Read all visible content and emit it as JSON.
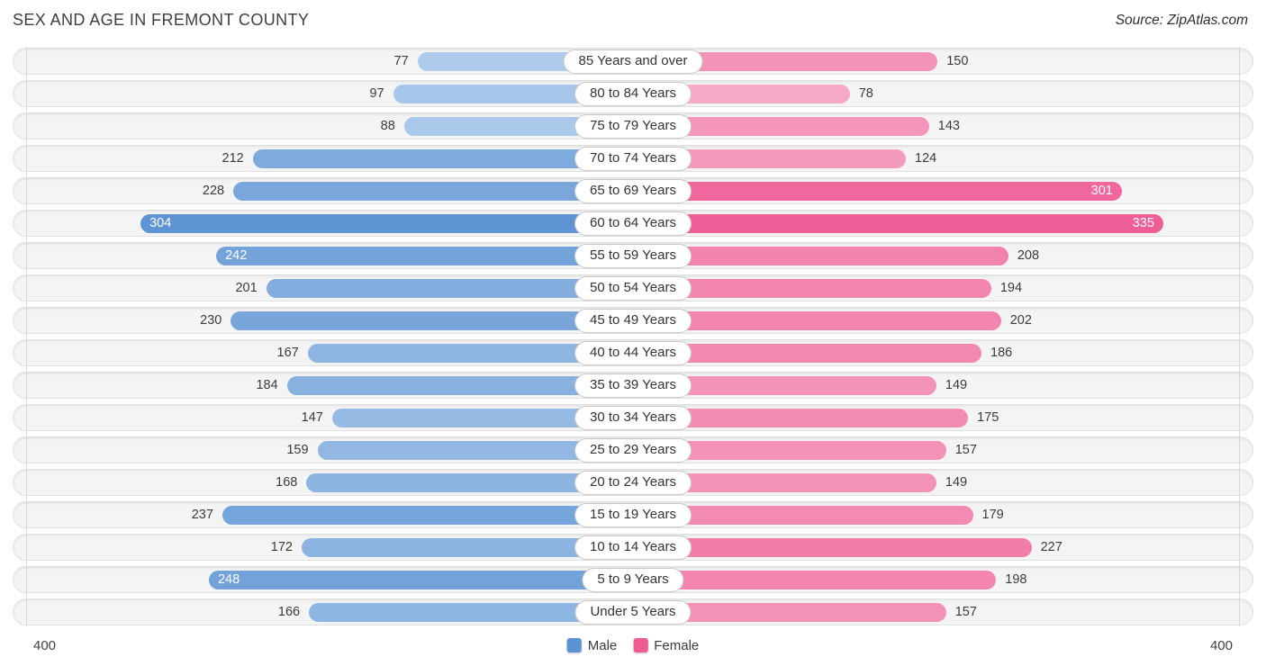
{
  "header": {
    "title": "SEX AND AGE IN FREMONT COUNTY",
    "source": "Source: ZipAtlas.com"
  },
  "chart_data": {
    "type": "bar",
    "subtype": "population-pyramid",
    "title": "SEX AND AGE IN FREMONT COUNTY",
    "categories": [
      "85 Years and over",
      "80 to 84 Years",
      "75 to 79 Years",
      "70 to 74 Years",
      "65 to 69 Years",
      "60 to 64 Years",
      "55 to 59 Years",
      "50 to 54 Years",
      "45 to 49 Years",
      "40 to 44 Years",
      "35 to 39 Years",
      "30 to 34 Years",
      "25 to 29 Years",
      "20 to 24 Years",
      "15 to 19 Years",
      "10 to 14 Years",
      "5 to 9 Years",
      "Under 5 Years"
    ],
    "series": [
      {
        "name": "Male",
        "values": [
          77,
          97,
          88,
          212,
          228,
          304,
          242,
          201,
          230,
          167,
          184,
          147,
          159,
          168,
          237,
          172,
          248,
          166
        ]
      },
      {
        "name": "Female",
        "values": [
          150,
          78,
          143,
          124,
          301,
          335,
          208,
          194,
          202,
          186,
          149,
          175,
          157,
          149,
          179,
          227,
          198,
          157
        ]
      }
    ],
    "axis": {
      "max": 400,
      "left_tick_label": "400",
      "right_tick_label": "400",
      "grid": true,
      "legend_position": "bottom-center"
    },
    "legend": [
      {
        "label": "Male",
        "color": "#5b92d4"
      },
      {
        "label": "Female",
        "color": "#ee5c93"
      }
    ],
    "colors": {
      "male_light": "#c9def3",
      "male_dark": "#3c7dc9",
      "female_light": "#f9bed7",
      "female_dark": "#ec4b89",
      "track": "#f4f4f4",
      "track_border": "#e0e0e0",
      "pill_border": "#c9c9c9"
    }
  }
}
